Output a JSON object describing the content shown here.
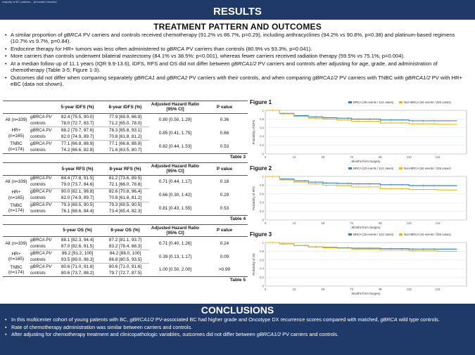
{
  "top_strip": "majority of BC patients... (truncated header)",
  "results_banner": "RESULTS",
  "section_title": "TREATMENT PATTERN AND OUTCOMES",
  "bullets": [
    {
      "pre": "A similar proportion of ",
      "it": "gBRCA",
      "post": " PV carriers and controls received chemotherapy (91.2% vs 86.7%, p=0.29), including anthracyclines (94.2% vs 90.8%, p=0.38) and platinum-based regimens (10.7% vs 9.7%, p=0.84)."
    },
    {
      "pre": "Endocrine therapy for HR+ tumors was less often administered to ",
      "it": "gBRCA",
      "post": " PV carriers than controls (80.9% vs 93.3%, p=0.041)."
    },
    {
      "pre": "More carriers than controls underwent bilateral mastectomy (84.1% vs 38.5%; p<0.001), whereas fewer carriers received radiation therapy (59.5% vs 75.1%, p=0.004).",
      "it": "",
      "post": ""
    },
    {
      "pre": "At a median follow up of 11.1 years (IQR 9.9-13.6), iDFS, RFS and OS did not differ between ",
      "it": "gBRCA1/2",
      "post": " PV carriers and controls after adjusting for age, grade, and administration of chemotherapy (Table 3-5; Figure 1-3)."
    },
    {
      "pre": "Outcomes did not differ when comparing separately ",
      "it": "gBRCA1",
      "mid": " and ",
      "it2": "gBRCA2",
      "post": " PV carriers with their controls, and when comparing ",
      "it3": "gBRCA1/2",
      "post2": " PV carriers with TNBC with ",
      "it4": "gBRCA1/2",
      "post3": " PV with HR+ eBC (data not shown)."
    }
  ],
  "tables": [
    {
      "caption": "Table 3",
      "headers": [
        "",
        "",
        "5-year IDFS (%)",
        "8-year IDFS (%)",
        "Adjusted Hazard Ratio [95% CI]",
        "P value"
      ],
      "groups": [
        {
          "group": "All (n=339)",
          "rows": [
            [
              "gBRCA PV",
              "82.4 [75.5, 90.0]",
              "77.9 [69.9, 86.9]"
            ],
            [
              "controls",
              "78.0 [72.7, 83.7]",
              "71.2 [65.0, 78.0]"
            ]
          ],
          "hr": "0.80 [0.50, 1.29]",
          "p": "0.36"
        },
        {
          "group": "HR+ (n=165)",
          "rows": [
            [
              "gBRCA PV",
              "88.2 [79.7, 97.6]",
              "78.3 [65.8, 93.1]"
            ],
            [
              "controls",
              "82.0 [74.9, 89.7]",
              "70.8 [61.8, 81.2]"
            ]
          ],
          "hr": "0.85 [0.41, 1.75]",
          "p": "0.66"
        },
        {
          "group": "TNBC (n=174)",
          "rows": [
            [
              "gBRCA PV",
              "77.1 [66.8, 88.9]",
              "77.1 [66.8, 88.9]"
            ],
            [
              "controls",
              "74.2 [66.6, 82.8]",
              "71.6 [63.5, 80.7]"
            ]
          ],
          "hr": "0.82 [0.44, 1.53]",
          "p": "0.53"
        }
      ]
    },
    {
      "caption": "Table 4",
      "headers": [
        "",
        "",
        "5-year RFS (%)",
        "8-year RFS (%)",
        "Adjusted Hazard Ratio [95% CI]",
        "P value"
      ],
      "groups": [
        {
          "group": "All (n=339)",
          "rows": [
            [
              "gBRCA PV",
              "84.4 [77.8, 91.5]",
              "81.2 [73.6, 89.5]"
            ],
            [
              "controls",
              "79.0 [73.7, 84.6]",
              "72.1 [66.0, 78.8]"
            ]
          ],
          "hr": "0.71 [0.44, 1.17]",
          "p": "0.18"
        },
        {
          "group": "HR+ (n=165)",
          "rows": [
            [
              "gBRCA PV",
              "90.0 [82.1, 98.8]",
              "82.6 [70.8, 96.4]"
            ],
            [
              "controls",
              "82.0 [74.9, 89.7]",
              "70.8 [61.8, 81.2]"
            ]
          ],
          "hr": "0.66 [0.30, 1.42]",
          "p": "0.29"
        },
        {
          "group": "TNBC (n=174)",
          "rows": [
            [
              "gBRCA PV",
              "79.3 [69.5, 90.5]",
              "79.3 [69.5, 90.5]"
            ],
            [
              "controls",
              "76.1 [68.6, 84.4]",
              "73.4 [65.4, 82.3]"
            ]
          ],
          "hr": "0.81 [0.43, 1.55]",
          "p": "0.53"
        }
      ]
    },
    {
      "caption": "Table 5",
      "headers": [
        "",
        "",
        "5-year OS (%)",
        "8-year OS (%)",
        "Adjusted Hazard Ratio [95% CI]",
        "P value"
      ],
      "groups": [
        {
          "group": "All (n=339)",
          "rows": [
            [
              "gBRCA PV",
              "88.1 [82.3, 94.4]",
              "87.2 [81.1, 93.7]"
            ],
            [
              "controls",
              "87.0 [82.6, 91.5]",
              "83.2 [78.4, 88.3]"
            ]
          ],
          "hr": "0.71 [0.40, 1.26]",
          "p": "0.24"
        },
        {
          "group": "HR+ (n=165)",
          "rows": [
            [
              "gBRCA PV",
              "96.2 [91.2, 100]",
              "94.2 [88.0, 100]"
            ],
            [
              "controls",
              "93.5 [89.0, 98.3]",
              "86.8 [80.5, 93.5]"
            ]
          ],
          "hr": "0.39 [0.13, 1.17]",
          "p": "0.09"
        },
        {
          "group": "TNBC (n=174)",
          "rows": [
            [
              "gBRCA PV",
              "80.6 [71.0, 91.6]",
              "80.6 [71.0, 91.6]"
            ],
            [
              "controls",
              "80.6 [73.7, 88.2]",
              "79.7 [72.7, 87.5]"
            ]
          ],
          "hr": "1.00 [0.50, 2.00]",
          "p": ">0.99"
        }
      ]
    }
  ],
  "figures": [
    {
      "title": "Figure 1",
      "legend_a": "BRCA (25 events / 113 cases)",
      "legend_b": "Non-BRCA (64 events / 226 cases)",
      "ylabel": "Probability of iDFS",
      "xlabel": "Months from Surgery"
    },
    {
      "title": "Figure 2",
      "legend_a": "BRCA (22 events / 113 cases)",
      "legend_b": "Non-BRCA (62 events / 226 cases)",
      "ylabel": "Probability of RFS",
      "xlabel": "Months from Surgery"
    },
    {
      "title": "Figure 3",
      "legend_a": "BRCA (16 events / 113 cases)",
      "legend_b": "Non-BRCA (44 events / 226 cases)",
      "ylabel": "Probability of OS",
      "xlabel": "Months from Surgery"
    }
  ],
  "chart_data": [
    {
      "type": "line",
      "title": "Figure 1",
      "xlabel": "Months from Surgery",
      "ylabel": "Probability of iDFS",
      "xlim": [
        0,
        168
      ],
      "ylim": [
        0,
        1.0
      ],
      "x_ticks": [
        0,
        24,
        48,
        72,
        96,
        120,
        144
      ],
      "y_ticks": [
        0.0,
        0.2,
        0.4,
        0.6,
        0.8,
        1.0
      ],
      "legend": "top-right",
      "series": [
        {
          "name": "BRCA (25 events / 113 cases)",
          "color": "#2a7fd4",
          "points": [
            [
              0,
              1.0
            ],
            [
              12,
              0.93
            ],
            [
              24,
              0.88
            ],
            [
              36,
              0.85
            ],
            [
              48,
              0.83
            ],
            [
              60,
              0.82
            ],
            [
              72,
              0.8
            ],
            [
              96,
              0.78
            ],
            [
              120,
              0.76
            ],
            [
              144,
              0.76
            ],
            [
              160,
              0.76
            ]
          ]
        },
        {
          "name": "Non-BRCA (64 events / 226 cases)",
          "color": "#f2b705",
          "points": [
            [
              0,
              1.0
            ],
            [
              12,
              0.92
            ],
            [
              24,
              0.86
            ],
            [
              36,
              0.82
            ],
            [
              48,
              0.8
            ],
            [
              60,
              0.78
            ],
            [
              72,
              0.75
            ],
            [
              96,
              0.71
            ],
            [
              120,
              0.69
            ],
            [
              144,
              0.68
            ],
            [
              160,
              0.68
            ]
          ]
        }
      ]
    },
    {
      "type": "line",
      "title": "Figure 2",
      "xlabel": "Months from Surgery",
      "ylabel": "Probability of RFS",
      "xlim": [
        0,
        168
      ],
      "ylim": [
        0,
        1.0
      ],
      "x_ticks": [
        0,
        24,
        48,
        72,
        96,
        120,
        144
      ],
      "y_ticks": [
        0.0,
        0.2,
        0.4,
        0.6,
        0.8,
        1.0
      ],
      "legend": "top-right",
      "series": [
        {
          "name": "BRCA (22 events / 113 cases)",
          "color": "#2a7fd4",
          "points": [
            [
              0,
              1.0
            ],
            [
              12,
              0.94
            ],
            [
              24,
              0.9
            ],
            [
              36,
              0.87
            ],
            [
              48,
              0.85
            ],
            [
              60,
              0.84
            ],
            [
              72,
              0.83
            ],
            [
              96,
              0.81
            ],
            [
              120,
              0.79
            ],
            [
              144,
              0.79
            ],
            [
              160,
              0.79
            ]
          ]
        },
        {
          "name": "Non-BRCA (62 events / 226 cases)",
          "color": "#f2b705",
          "points": [
            [
              0,
              1.0
            ],
            [
              12,
              0.92
            ],
            [
              24,
              0.87
            ],
            [
              36,
              0.83
            ],
            [
              48,
              0.8
            ],
            [
              60,
              0.79
            ],
            [
              72,
              0.76
            ],
            [
              96,
              0.72
            ],
            [
              120,
              0.7
            ],
            [
              144,
              0.69
            ],
            [
              160,
              0.69
            ]
          ]
        }
      ]
    },
    {
      "type": "line",
      "title": "Figure 3",
      "xlabel": "Months from Surgery",
      "ylabel": "Probability of OS",
      "xlim": [
        0,
        168
      ],
      "ylim": [
        0,
        1.0
      ],
      "x_ticks": [
        0,
        24,
        48,
        72,
        96,
        120,
        144
      ],
      "y_ticks": [
        0.0,
        0.2,
        0.4,
        0.6,
        0.8,
        1.0
      ],
      "legend": "top-right",
      "series": [
        {
          "name": "BRCA (16 events / 113 cases)",
          "color": "#2a7fd4",
          "points": [
            [
              0,
              1.0
            ],
            [
              12,
              0.97
            ],
            [
              24,
              0.93
            ],
            [
              36,
              0.9
            ],
            [
              48,
              0.89
            ],
            [
              60,
              0.88
            ],
            [
              72,
              0.87
            ],
            [
              96,
              0.86
            ],
            [
              120,
              0.85
            ],
            [
              144,
              0.85
            ],
            [
              160,
              0.85
            ]
          ]
        },
        {
          "name": "Non-BRCA (44 events / 226 cases)",
          "color": "#f2b705",
          "points": [
            [
              0,
              1.0
            ],
            [
              12,
              0.97
            ],
            [
              24,
              0.93
            ],
            [
              36,
              0.9
            ],
            [
              48,
              0.88
            ],
            [
              60,
              0.87
            ],
            [
              72,
              0.85
            ],
            [
              96,
              0.83
            ],
            [
              120,
              0.81
            ],
            [
              144,
              0.8
            ],
            [
              160,
              0.8
            ]
          ]
        }
      ]
    }
  ],
  "conclusions_banner": "CONCLUSIONS",
  "conclusions": [
    {
      "pre": "In this multicenter cohort of young patients with BC, ",
      "it": "gBRCA1/2",
      "post": " PV-associated BC had higher grade and Oncotype DX recurrence scores compared with matched, ",
      "it2": "gBRCA",
      "post2": " wild type controls."
    },
    {
      "pre": "Rate of chemotherapy administration was similar between carriers and controls.",
      "it": "",
      "post": ""
    },
    {
      "pre": "After adjusting for chemotherapy treatment and clinicopathologic variables, outcomes did not differ between ",
      "it": "gBRCA1/2",
      "post": " PV carriers and controls."
    }
  ]
}
